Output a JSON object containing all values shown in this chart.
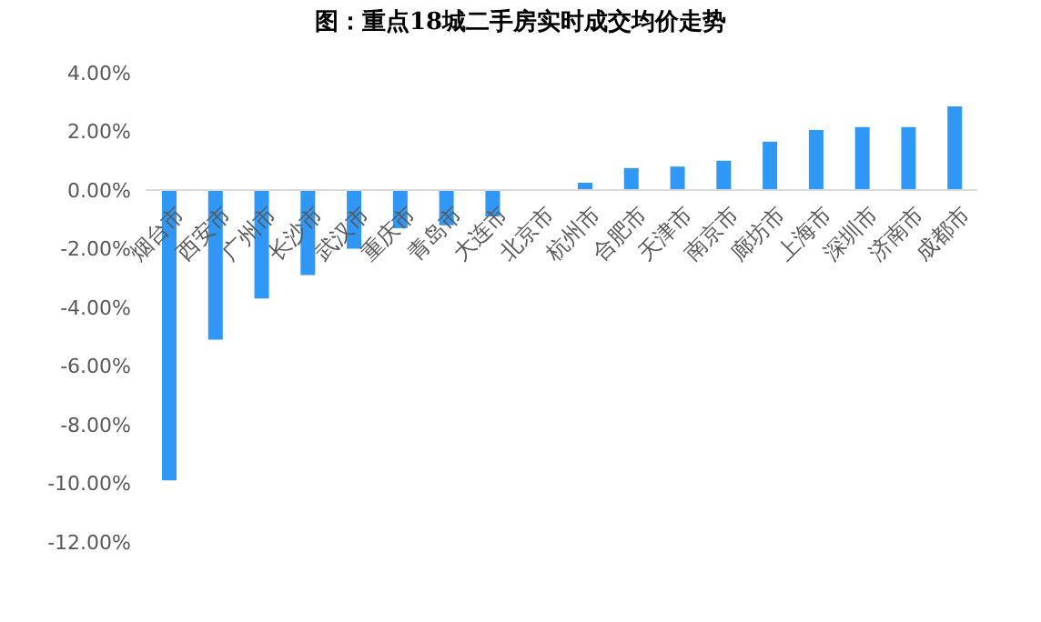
{
  "chart_data": {
    "type": "bar",
    "title": "图：重点18城二手房实时成交均价走势",
    "categories": [
      "烟台市",
      "西安市",
      "广州市",
      "长沙市",
      "武汉市",
      "重庆市",
      "青岛市",
      "大连市",
      "北京市",
      "杭州市",
      "合肥市",
      "天津市",
      "南京市",
      "廊坊市",
      "上海市",
      "深圳市",
      "济南市",
      "成都市"
    ],
    "values": [
      -9.9,
      -5.1,
      -3.7,
      -2.9,
      -2.0,
      -1.3,
      -1.2,
      -0.9,
      0,
      0.25,
      0.75,
      0.8,
      1.0,
      1.65,
      2.05,
      2.15,
      2.15,
      2.85
    ],
    "color": "#2f97f5",
    "ylim": [
      -12,
      4
    ],
    "yticks": [
      {
        "value": -12,
        "label": "-12.00%"
      },
      {
        "value": -10,
        "label": "-10.00%"
      },
      {
        "value": -8,
        "label": "-8.00%"
      },
      {
        "value": -6,
        "label": "-6.00%"
      },
      {
        "value": -4,
        "label": "-4.00%"
      },
      {
        "value": -2,
        "label": "-2.00%"
      },
      {
        "value": 0,
        "label": "0.00%"
      },
      {
        "value": 2,
        "label": "2.00%"
      },
      {
        "value": 4,
        "label": "4.00%"
      }
    ],
    "grid": false,
    "legend": false
  }
}
